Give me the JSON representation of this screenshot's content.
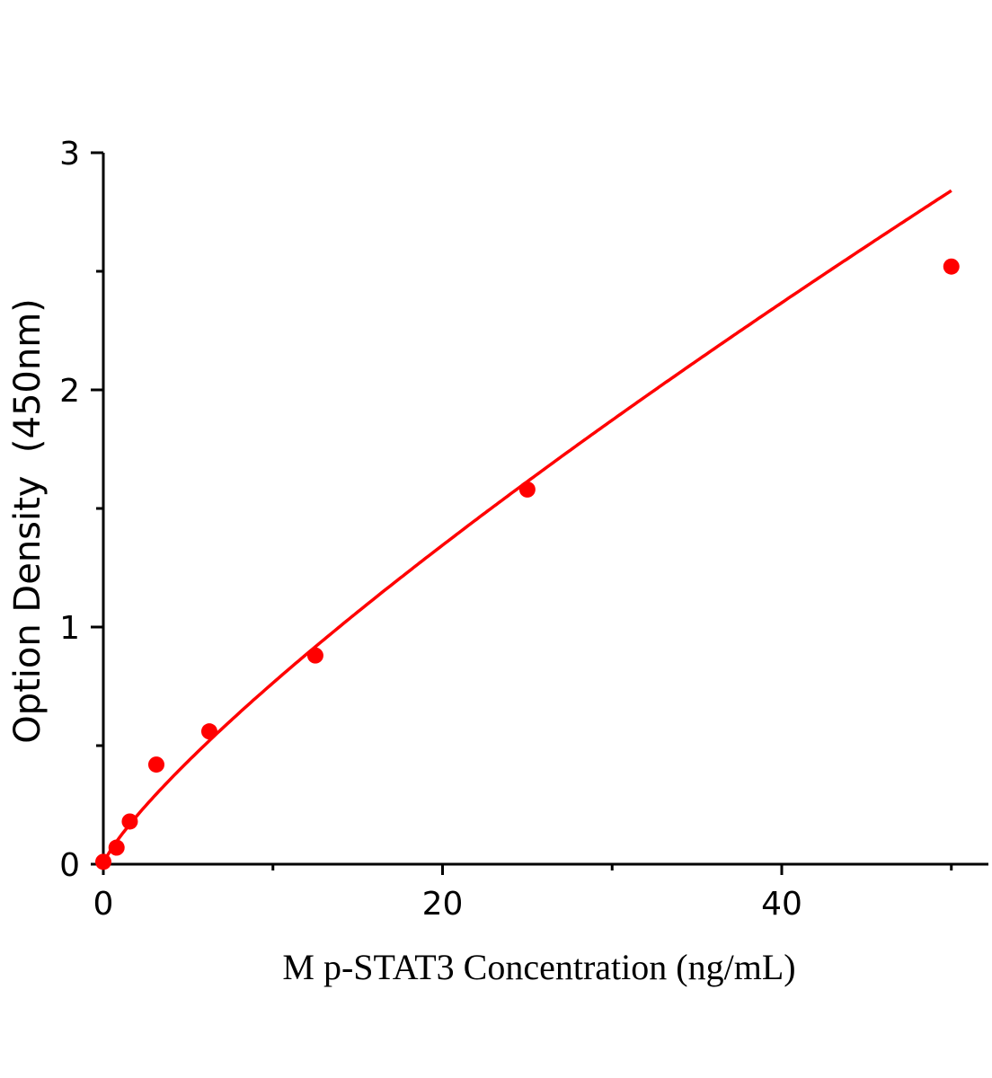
{
  "chart_data": {
    "type": "scatter",
    "title": "",
    "xlabel": "M p-STAT3 Concentration (ng/mL)",
    "ylabel": "Option Density  (450nm)",
    "xlim": [
      0,
      52
    ],
    "ylim": [
      0,
      3
    ],
    "xticks": [
      0,
      20,
      40
    ],
    "yticks": [
      0,
      1,
      2,
      3
    ],
    "xminor": [
      10,
      30,
      50
    ],
    "yminor": [
      0.5,
      1.5,
      2.5
    ],
    "grid": false,
    "color": "#ff0000",
    "points": [
      {
        "x": 0,
        "y": 0.01
      },
      {
        "x": 0.78,
        "y": 0.07
      },
      {
        "x": 1.56,
        "y": 0.18
      },
      {
        "x": 3.125,
        "y": 0.42
      },
      {
        "x": 6.25,
        "y": 0.56
      },
      {
        "x": 12.5,
        "y": 0.88
      },
      {
        "x": 25,
        "y": 1.58
      },
      {
        "x": 50,
        "y": 2.52
      }
    ],
    "fit_curve": "power"
  }
}
